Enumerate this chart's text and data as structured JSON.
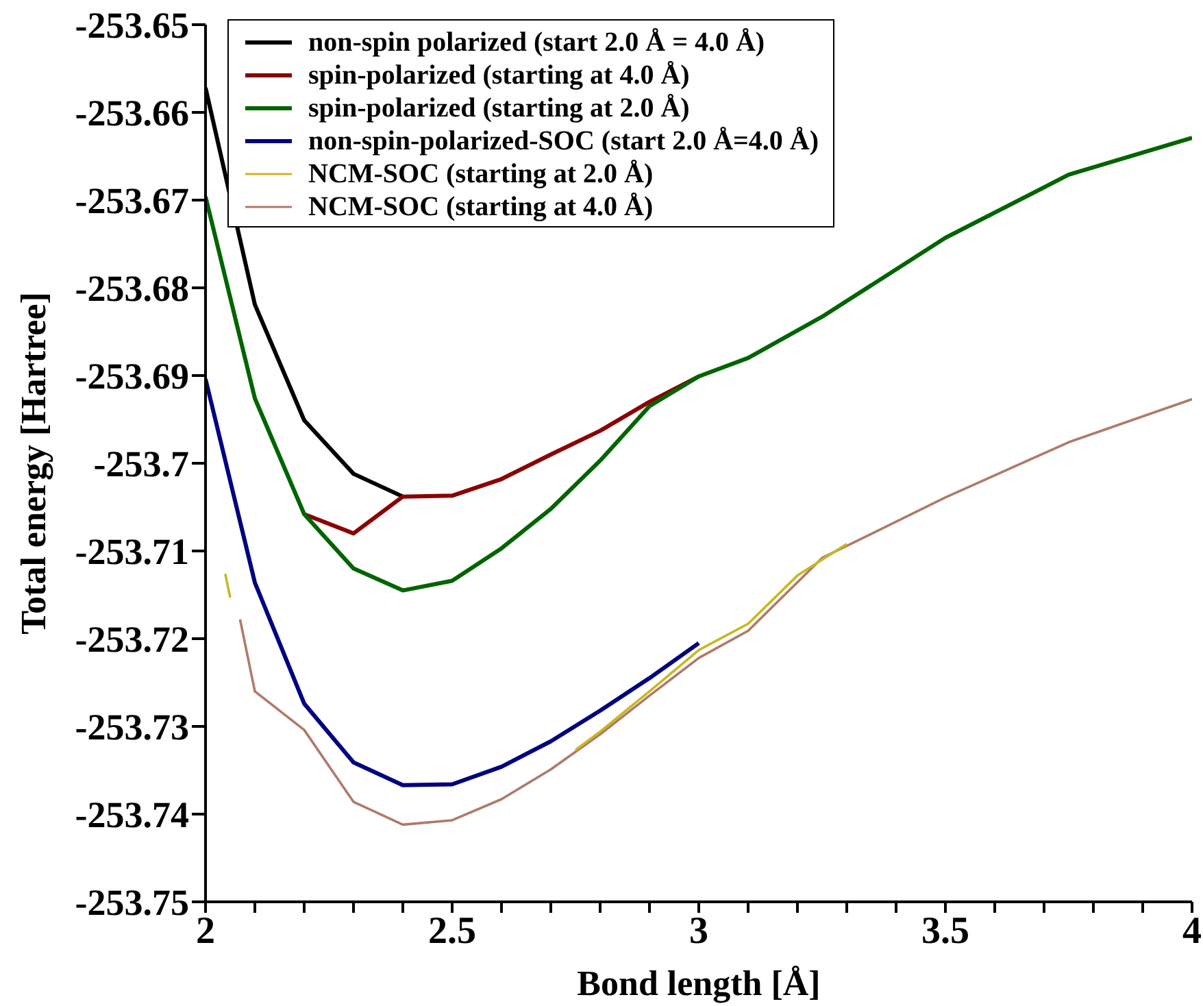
{
  "chart_data": {
    "type": "line",
    "xlabel": "Bond length [Å]",
    "ylabel": "Total energy [Hartree]",
    "xlim": [
      2,
      4
    ],
    "ylim": [
      -253.75,
      -253.65
    ],
    "xticks": [
      2,
      {
        "value": 2.1,
        "label": null
      },
      {
        "value": 2.2,
        "label": null
      },
      {
        "value": 2.3,
        "label": null
      },
      {
        "value": 2.4,
        "label": null
      },
      2.5,
      {
        "value": 2.6,
        "label": null
      },
      {
        "value": 2.7,
        "label": null
      },
      {
        "value": 2.8,
        "label": null
      },
      {
        "value": 2.9,
        "label": null
      },
      3,
      {
        "value": 3.1,
        "label": null
      },
      {
        "value": 3.2,
        "label": null
      },
      {
        "value": 3.3,
        "label": null
      },
      {
        "value": 3.4,
        "label": null
      },
      3.5,
      {
        "value": 3.6,
        "label": null
      },
      {
        "value": 3.7,
        "label": null
      },
      {
        "value": 3.8,
        "label": null
      },
      {
        "value": 3.9,
        "label": null
      },
      4
    ],
    "yticks": [
      -253.75,
      -253.74,
      -253.73,
      -253.72,
      -253.71,
      -253.7,
      -253.69,
      -253.68,
      -253.67,
      -253.66,
      -253.65
    ],
    "grid": false,
    "legend": "top left",
    "marker": "none",
    "line_style": "solid",
    "series": [
      {
        "name": "non-spin polarized (start 2.0 Å = 4.0 Å)",
        "color": "#000000",
        "x": [
          2,
          2.1,
          2.2,
          2.3,
          2.4
        ],
        "values": [
          -253.6572,
          -253.6819,
          -253.6951,
          -253.7012,
          -253.7038
        ]
      },
      {
        "name": "spin-polarized (starting at 4.0 Å)",
        "color": "#8b0000",
        "x": [
          2.2,
          2.3,
          2.4,
          2.5,
          2.6,
          2.7,
          2.8,
          2.9,
          3
        ],
        "values": [
          -253.7058,
          -253.708,
          -253.7038,
          -253.7037,
          -253.7018,
          -253.699,
          -253.6963,
          -253.693,
          -253.6901
        ]
      },
      {
        "name": "spin-polarized (starting at 2.0 Å)",
        "color": "#006400",
        "x": [
          2,
          2.1,
          2.2,
          2.3,
          2.4,
          2.5,
          2.6,
          2.7,
          2.8,
          2.9,
          3,
          3.1,
          3.25,
          3.5,
          3.75,
          4
        ],
        "values": [
          -253.6696,
          -253.6926,
          -253.7058,
          -253.712,
          -253.7145,
          -253.7134,
          -253.7097,
          -253.7052,
          -253.6997,
          -253.6935,
          -253.6901,
          -253.688,
          -253.6833,
          -253.6743,
          -253.6671,
          -253.6629
        ]
      },
      {
        "name": "non-spin-polarized-SOC (start 2.0 Å=4.0 Å)",
        "color": "#000080",
        "x": [
          2,
          2.1,
          2.2,
          2.3,
          2.4,
          2.5,
          2.6,
          2.7,
          2.8,
          2.9,
          3
        ],
        "values": [
          -253.6904,
          -253.7136,
          -253.7274,
          -253.7341,
          -253.7367,
          -253.7366,
          -253.7346,
          -253.7317,
          -253.7282,
          -253.7245,
          -253.7205
        ]
      },
      {
        "name": "NCM-SOC (starting at 4.0 Å)",
        "color": "#b07a6a",
        "x": [
          2.07,
          2.1,
          2.2,
          2.3,
          2.4,
          2.5,
          2.6,
          2.7,
          2.8,
          2.9,
          3,
          3.1,
          3.25,
          3.5,
          3.75,
          4
        ],
        "values": [
          -253.7178,
          -253.726,
          -253.7304,
          -253.7386,
          -253.7412,
          -253.7407,
          -253.7383,
          -253.7349,
          -253.7309,
          -253.7265,
          -253.7222,
          -253.7191,
          -253.7108,
          -253.7039,
          -253.6976,
          -253.6927
        ]
      },
      {
        "name": "NCM-SOC (starting at 2.0 Å)",
        "color": "#c8b820",
        "x": [
          2.04,
          2.05,
          2.06,
          2.75,
          2.8,
          2.9,
          3,
          3.1,
          3.2,
          3.3
        ],
        "values": [
          -253.7126,
          -253.7153,
          null,
          -253.7327,
          -253.7306,
          -253.726,
          -253.7213,
          -253.7183,
          -253.7128,
          -253.7092
        ]
      }
    ]
  }
}
